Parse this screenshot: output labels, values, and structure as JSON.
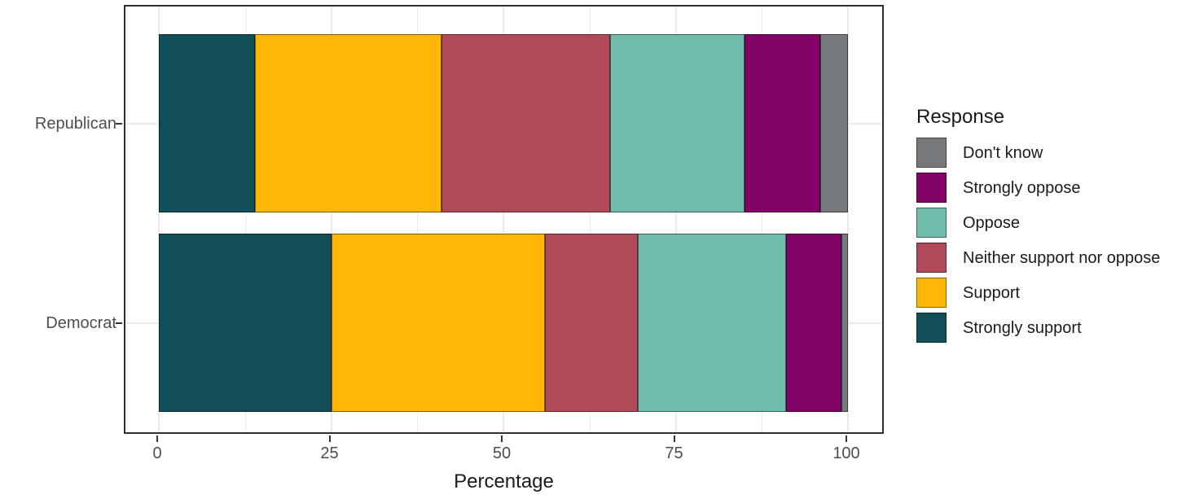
{
  "figure": {
    "xlabel": "Percentage",
    "legend_title": "Response"
  },
  "chart_data": {
    "type": "bar",
    "orientation": "horizontal",
    "stacked": true,
    "title": "",
    "xlabel": "Percentage",
    "ylabel": "",
    "categories": [
      "Republican",
      "Democrat"
    ],
    "series": [
      {
        "name": "Strongly support",
        "color": "#11505A",
        "values": [
          14,
          25
        ]
      },
      {
        "name": "Support",
        "color": "#FFB606",
        "values": [
          27,
          31
        ]
      },
      {
        "name": "Neither support nor oppose",
        "color": "#B14A58",
        "values": [
          24.5,
          13.5
        ]
      },
      {
        "name": "Oppose",
        "color": "#70BCAB",
        "values": [
          19.5,
          21.5
        ]
      },
      {
        "name": "Strongly oppose",
        "color": "#840366",
        "values": [
          11,
          8
        ]
      },
      {
        "name": "Don't know",
        "color": "#76797C",
        "values": [
          4,
          1
        ]
      }
    ],
    "legend_title": "Response",
    "legend_position": "right",
    "legend_order": [
      "Don't know",
      "Strongly oppose",
      "Oppose",
      "Neither support nor oppose",
      "Support",
      "Strongly support"
    ],
    "xlim": [
      0,
      100
    ],
    "x_major_ticks": [
      0,
      25,
      50,
      75,
      100
    ],
    "x_tick_labels": [
      "0",
      "25",
      "50",
      "75",
      "100"
    ],
    "x_minor_gridlines": [
      12.5,
      37.5,
      62.5,
      87.5
    ],
    "grid": true,
    "colors": {
      "panel_background": "#FFFFFF",
      "gridline": "#EBEBEB",
      "panel_border": "#2F2F2F",
      "axis_text": "#4D4D4D",
      "title_text": "#1A1A1A"
    }
  }
}
